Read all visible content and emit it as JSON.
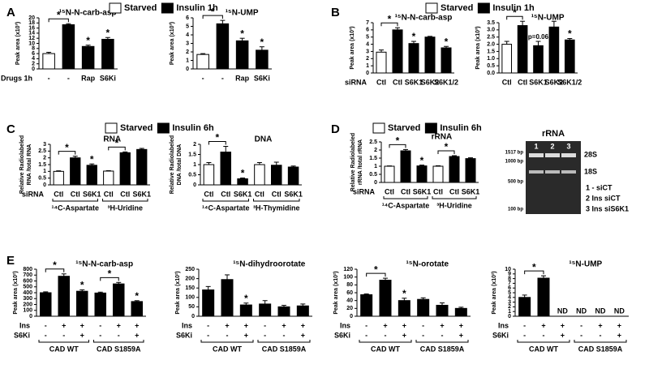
{
  "chart_data": [
    {
      "type": "bar",
      "panel": "A",
      "title": "¹⁵N-N-carb-asp",
      "ylabel": [
        "Peak area (x10³)"
      ],
      "legend": [
        {
          "name": "Starved",
          "color": "#ffffff"
        },
        {
          "name": "Insulin 1h",
          "color": "#000000"
        }
      ],
      "ylim": [
        0,
        20
      ],
      "yticks": [
        0,
        2,
        4,
        6,
        8,
        10,
        12,
        14,
        16,
        18,
        20
      ],
      "rows": [
        {
          "label": "Drugs 1h",
          "values": [
            "-",
            "-",
            "Rap",
            "S6Ki"
          ]
        }
      ],
      "values": [
        6,
        17.3,
        8.8,
        11.6
      ],
      "errors": [
        0.5,
        0.4,
        0.5,
        0.7
      ],
      "colors": [
        "#ffffff",
        "#000000",
        "#000000",
        "#000000"
      ],
      "stars": [
        {
          "bar": 2,
          "text": "*"
        },
        {
          "bar": 3,
          "text": "*"
        }
      ],
      "brackets": [
        {
          "from": 0,
          "to": 1,
          "text": "*"
        }
      ]
    },
    {
      "type": "bar",
      "title": "¹⁵N-UMP",
      "ylabel": [
        "Peak area (x10³)"
      ],
      "ylim": [
        0,
        6
      ],
      "yticks": [
        0,
        1,
        2,
        3,
        4,
        5,
        6
      ],
      "rows": [
        {
          "values": [
            "-",
            "-",
            "Rap",
            "S6Ki"
          ]
        }
      ],
      "values": [
        1.7,
        5.3,
        3.3,
        2.2
      ],
      "errors": [
        0.1,
        0.4,
        0.3,
        0.4
      ],
      "colors": [
        "#ffffff",
        "#000000",
        "#000000",
        "#000000"
      ],
      "stars": [
        {
          "bar": 2,
          "text": "*"
        },
        {
          "bar": 3,
          "text": "*"
        }
      ],
      "brackets": [
        {
          "from": 0,
          "to": 1,
          "text": "*"
        }
      ]
    },
    {
      "type": "bar",
      "panel": "B",
      "title": "¹⁵N-N-carb-asp",
      "ylabel": [
        "Peak area (x10³)"
      ],
      "legend": [
        {
          "name": "Starved",
          "color": "#ffffff"
        },
        {
          "name": "Insulin 1h",
          "color": "#000000"
        }
      ],
      "ylim": [
        0,
        7
      ],
      "yticks": [
        0,
        1,
        2,
        3,
        4,
        5,
        6,
        7
      ],
      "rows": [
        {
          "label": "siRNA",
          "values": [
            "Ctl",
            "Ctl",
            "S6K1",
            "S6K2",
            "S6K1/2"
          ]
        }
      ],
      "values": [
        2.9,
        6.0,
        4.1,
        5.0,
        3.5
      ],
      "errors": [
        0.3,
        0.3,
        0.3,
        0.1,
        0.2
      ],
      "colors": [
        "#ffffff",
        "#000000",
        "#000000",
        "#000000",
        "#000000"
      ],
      "stars": [
        {
          "bar": 2,
          "text": "*"
        },
        {
          "bar": 4,
          "text": "*"
        }
      ],
      "brackets": [
        {
          "from": 0,
          "to": 1,
          "text": "*"
        }
      ]
    },
    {
      "type": "bar",
      "title": "¹⁵N-UMP",
      "ylabel": [
        "Peak area (x10³)"
      ],
      "ylim": [
        0,
        3.5
      ],
      "yticks": [
        {
          "value": 0,
          "label": "0.0"
        },
        0.5,
        {
          "value": 1,
          "label": "1.0"
        },
        1.5,
        {
          "value": 2,
          "label": "2.0"
        },
        2.5,
        {
          "value": 3,
          "label": "3.0"
        },
        3.5
      ],
      "rows": [
        {
          "values": [
            "Ctl",
            "Ctl",
            "S6K1",
            "S6K2",
            "S6K1/2"
          ]
        }
      ],
      "values": [
        2.0,
        3.3,
        1.9,
        3.2,
        2.3
      ],
      "errors": [
        0.2,
        0.3,
        0.3,
        0.4,
        0.1
      ],
      "colors": [
        "#ffffff",
        "#000000",
        "#000000",
        "#000000",
        "#000000"
      ],
      "stars": [
        {
          "bar": 2,
          "text": "p=0.06"
        },
        {
          "bar": 4,
          "text": "*"
        }
      ],
      "brackets": [
        {
          "from": 0,
          "to": 1,
          "text": "*"
        }
      ]
    },
    {
      "type": "bar",
      "panel": "C",
      "title": "RNA",
      "ylabel": [
        "Relative Radiolabeled",
        "RNA /total RNA"
      ],
      "legend": [
        {
          "name": "Starved",
          "color": "#ffffff"
        },
        {
          "name": "Insulin 6h",
          "color": "#000000"
        }
      ],
      "ylim": [
        0,
        3
      ],
      "yticks": [
        0,
        0.5,
        1,
        1.5,
        2,
        2.5,
        3
      ],
      "rows": [
        {
          "label": "siRNA",
          "values": [
            "Ctl",
            "Ctl",
            "S6K1",
            "Ctl",
            "Ctl",
            "S6K1"
          ]
        }
      ],
      "groups": [
        {
          "label": "¹⁴C-Aspartate",
          "from": 0,
          "to": 2
        },
        {
          "label": "³H-Uridine",
          "from": 3,
          "to": 5
        }
      ],
      "values": [
        1.0,
        2.0,
        1.45,
        1.02,
        2.38,
        2.62
      ],
      "errors": [
        0.04,
        0.12,
        0.1,
        0.03,
        0.06,
        0.08
      ],
      "colors": [
        "#ffffff",
        "#000000",
        "#000000",
        "#ffffff",
        "#000000",
        "#000000"
      ],
      "stars": [
        {
          "bar": 2,
          "text": "*"
        }
      ],
      "brackets": [
        {
          "from": 0,
          "to": 1,
          "text": "*"
        },
        {
          "from": 3,
          "to": 4,
          "text": "*"
        }
      ]
    },
    {
      "type": "bar",
      "title": "DNA",
      "ylabel": [
        "Relative Radiolabeled",
        "DNA /total DNA"
      ],
      "ylim": [
        0,
        2
      ],
      "yticks": [
        0,
        0.5,
        1,
        1.5,
        2
      ],
      "rows": [
        {
          "values": [
            "Ctl",
            "Ctl",
            "S6K1",
            "Ctl",
            "Ctl",
            "S6K1"
          ]
        }
      ],
      "groups": [
        {
          "label": "¹⁴C-Aspartate",
          "from": 0,
          "to": 2
        },
        {
          "label": "³H-Thymidine",
          "from": 3,
          "to": 5
        }
      ],
      "values": [
        1.0,
        1.62,
        0.3,
        1.0,
        0.97,
        0.88
      ],
      "errors": [
        0.1,
        0.28,
        0.04,
        0.1,
        0.15,
        0.05
      ],
      "colors": [
        "#ffffff",
        "#000000",
        "#000000",
        "#ffffff",
        "#000000",
        "#000000"
      ],
      "stars": [
        {
          "bar": 2,
          "text": "*"
        }
      ],
      "brackets": [
        {
          "from": 0,
          "to": 1,
          "text": "*"
        }
      ]
    },
    {
      "type": "bar",
      "panel": "D",
      "title": "rRNA",
      "ylabel": [
        "Relative Radiolabeled",
        "rRNA /total rRNA"
      ],
      "legend": [
        {
          "name": "Starved",
          "color": "#ffffff"
        },
        {
          "name": "Insulin 6h",
          "color": "#000000"
        }
      ],
      "ylim": [
        0,
        2.5
      ],
      "yticks": [
        0,
        0.5,
        1,
        1.5,
        2,
        2.5
      ],
      "rows": [
        {
          "label": "siRNA",
          "values": [
            "Ctl",
            "Ctl",
            "S6K1",
            "Ctl",
            "Ctl",
            "S6K1"
          ]
        }
      ],
      "groups": [
        {
          "label": "¹⁴C-Aspartate",
          "from": 0,
          "to": 2
        },
        {
          "label": "³H-Uridine",
          "from": 3,
          "to": 5
        }
      ],
      "values": [
        1.0,
        1.95,
        1.02,
        1.0,
        1.6,
        1.47
      ],
      "errors": [
        0.02,
        0.08,
        0.05,
        0.03,
        0.05,
        0.05
      ],
      "colors": [
        "#ffffff",
        "#000000",
        "#000000",
        "#ffffff",
        "#000000",
        "#000000"
      ],
      "stars": [
        {
          "bar": 2,
          "text": "*"
        }
      ],
      "brackets": [
        {
          "from": 0,
          "to": 1,
          "text": "*"
        },
        {
          "from": 3,
          "to": 4,
          "text": "*"
        }
      ]
    },
    {
      "type": "bar",
      "panel": "E",
      "title": "¹⁵N-N-carb-asp",
      "ylabel": [
        "Peak area (x10²)"
      ],
      "ylim": [
        0,
        800
      ],
      "yticks": [
        0,
        100,
        200,
        300,
        400,
        500,
        600,
        700,
        800
      ],
      "rows": [
        {
          "label": "Ins",
          "values": [
            "-",
            "+",
            "+",
            "-",
            "+",
            "+"
          ]
        },
        {
          "label": "S6Ki",
          "values": [
            "-",
            "-",
            "+",
            "-",
            "-",
            "+"
          ]
        }
      ],
      "groups": [
        {
          "label": "CAD WT",
          "from": 0,
          "to": 2
        },
        {
          "label": "CAD S1859A",
          "from": 3,
          "to": 5
        }
      ],
      "values": [
        400,
        680,
        425,
        395,
        550,
        250
      ],
      "errors": [
        15,
        40,
        25,
        15,
        25,
        15
      ],
      "colors": [
        "#000000",
        "#000000",
        "#000000",
        "#000000",
        "#000000",
        "#000000"
      ],
      "stars": [
        {
          "bar": 2,
          "text": "*"
        },
        {
          "bar": 5,
          "text": "*"
        }
      ],
      "brackets": [
        {
          "from": 0,
          "to": 1,
          "text": "*"
        },
        {
          "from": 3,
          "to": 4,
          "text": "*"
        }
      ]
    },
    {
      "type": "bar",
      "title": "¹⁵N-dihydroorotate",
      "ylabel": [
        "Peak area (x10²)"
      ],
      "ylim": [
        0,
        250
      ],
      "yticks": [
        0,
        50,
        100,
        150,
        200,
        250
      ],
      "rows": [
        {
          "label": "Ins",
          "values": [
            "-",
            "+",
            "+",
            "-",
            "+",
            "+"
          ]
        },
        {
          "label": "S6Ki",
          "values": [
            "-",
            "-",
            "+",
            "-",
            "-",
            "+"
          ]
        }
      ],
      "groups": [
        {
          "label": "CAD WT",
          "from": 0,
          "to": 2
        },
        {
          "label": "CAD S1859A",
          "from": 3,
          "to": 5
        }
      ],
      "values": [
        140,
        195,
        60,
        65,
        50,
        55
      ],
      "errors": [
        18,
        25,
        10,
        18,
        8,
        10
      ],
      "colors": [
        "#000000",
        "#000000",
        "#000000",
        "#000000",
        "#000000",
        "#000000"
      ],
      "stars": [
        {
          "bar": 2,
          "text": "*"
        }
      ]
    },
    {
      "type": "bar",
      "title": "¹⁵N-orotate",
      "ylabel": [
        "Peak area (x10²)"
      ],
      "ylim": [
        0,
        120
      ],
      "yticks": [
        0,
        20,
        40,
        60,
        80,
        100,
        120
      ],
      "rows": [
        {
          "label": "Ins",
          "values": [
            "-",
            "+",
            "+",
            "-",
            "+",
            "+"
          ]
        },
        {
          "label": "S6Ki",
          "values": [
            "-",
            "-",
            "+",
            "-",
            "-",
            "+"
          ]
        }
      ],
      "groups": [
        {
          "label": "CAD WT",
          "from": 0,
          "to": 2
        },
        {
          "label": "CAD S1859A",
          "from": 3,
          "to": 5
        }
      ],
      "values": [
        55,
        92,
        40,
        43,
        28,
        20
      ],
      "errors": [
        2,
        5,
        6,
        4,
        6,
        3
      ],
      "colors": [
        "#000000",
        "#000000",
        "#000000",
        "#000000",
        "#000000",
        "#000000"
      ],
      "stars": [
        {
          "bar": 2,
          "text": "*"
        }
      ],
      "brackets": [
        {
          "from": 0,
          "to": 1,
          "text": "*"
        }
      ]
    },
    {
      "type": "bar",
      "title": "¹⁵N-UMP",
      "ylabel": [
        "Peak area (x10²)"
      ],
      "ylim": [
        0,
        10
      ],
      "yticks": [
        0,
        1,
        2,
        3,
        4,
        5,
        6,
        7,
        8,
        9,
        10
      ],
      "rows": [
        {
          "label": "Ins",
          "values": [
            "-",
            "+",
            "+",
            "-",
            "+",
            "+"
          ]
        },
        {
          "label": "S6Ki",
          "values": [
            "-",
            "-",
            "+",
            "-",
            "-",
            "+"
          ]
        }
      ],
      "groups": [
        {
          "label": "CAD WT",
          "from": 0,
          "to": 2
        },
        {
          "label": "CAD S1859A",
          "from": 3,
          "to": 5
        }
      ],
      "values": [
        4,
        8.1,
        null,
        null,
        null,
        null
      ],
      "errors": [
        0.5,
        0.5,
        null,
        null,
        null,
        null
      ],
      "value_labels": [
        null,
        null,
        "ND",
        "ND",
        "ND",
        "ND"
      ],
      "colors": [
        "#000000",
        "#000000",
        "#000000",
        "#000000",
        "#000000",
        "#000000"
      ],
      "brackets": [
        {
          "from": 0,
          "to": 1,
          "text": "*"
        }
      ]
    }
  ],
  "gel": {
    "title": "rRNA",
    "lanes": [
      "1",
      "2",
      "3"
    ],
    "bands": [
      "28S",
      "18S"
    ],
    "markers": [
      "1517 bp",
      "1000 bp",
      "500 bp",
      "100 bp"
    ],
    "key": [
      "1  -  siCT",
      "2 Ins siCT",
      "3 Ins siS6K1"
    ]
  }
}
